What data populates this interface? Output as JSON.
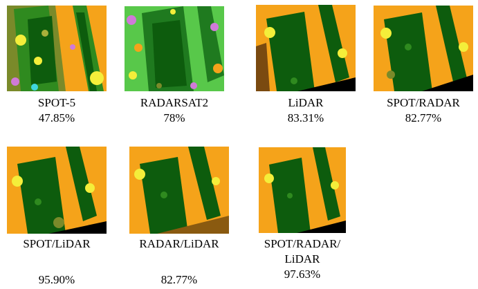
{
  "figure": {
    "panels": [
      {
        "label": "SPOT-5",
        "accuracy": "47.85%",
        "palette": "spot"
      },
      {
        "label": "RADARSAT2",
        "accuracy": "78%",
        "palette": "radar"
      },
      {
        "label": "LiDAR",
        "accuracy": "83.31%",
        "palette": "lidar"
      },
      {
        "label": "SPOT/RADAR",
        "accuracy": "82.77%",
        "palette": "fused"
      },
      {
        "label": "SPOT/LiDAR",
        "accuracy": "95.90%",
        "palette": "fused"
      },
      {
        "label": "RADAR/LiDAR",
        "accuracy": "82.77%",
        "palette": "radarlidar"
      },
      {
        "label_line1": "SPOT/RADAR/",
        "label_line2": "LiDAR",
        "accuracy": "97.63%",
        "palette": "fused"
      }
    ],
    "colors": {
      "orange": "#f5a31a",
      "dark_green": "#0d5c0d",
      "mid_green": "#2f8a1f",
      "yellow": "#f4ee3a",
      "olive": "#7a8a2a",
      "magenta": "#d07ad8",
      "cyan": "#3fd6e0",
      "brown": "#8a5a10",
      "black": "#000000"
    }
  }
}
